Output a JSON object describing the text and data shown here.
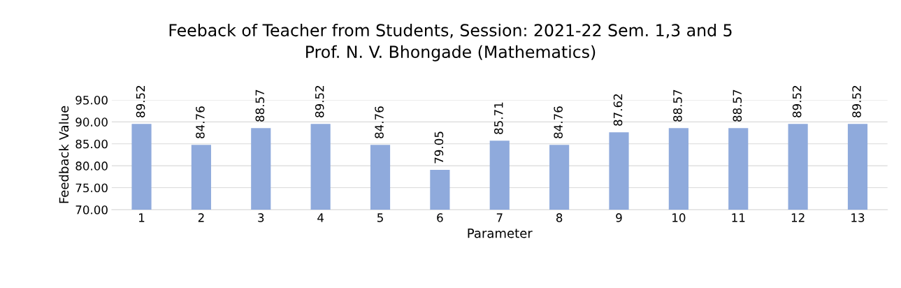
{
  "chart_data": {
    "type": "bar",
    "title": "Feeback of Teacher from Students, Session: 2021-22 Sem. 1,3 and 5",
    "subtitle": "Prof. N. V. Bhongade (Mathematics)",
    "xlabel": "Parameter",
    "ylabel": "Feedback Value",
    "categories": [
      "1",
      "2",
      "3",
      "4",
      "5",
      "6",
      "7",
      "8",
      "9",
      "10",
      "11",
      "12",
      "13"
    ],
    "values": [
      89.52,
      84.76,
      88.57,
      89.52,
      84.76,
      79.05,
      85.71,
      84.76,
      87.62,
      88.57,
      88.57,
      89.52,
      89.52
    ],
    "color": "#8faadc",
    "ylim": [
      70,
      95
    ],
    "yticks": [
      {
        "value": 70,
        "label": "70.00"
      },
      {
        "value": 75,
        "label": "75.00"
      },
      {
        "value": 80,
        "label": "80.00"
      },
      {
        "value": 85,
        "label": "85.00"
      },
      {
        "value": 90,
        "label": "90.00"
      },
      {
        "value": 95,
        "label": "95.00"
      }
    ],
    "grid": "y",
    "data_labels": true
  }
}
